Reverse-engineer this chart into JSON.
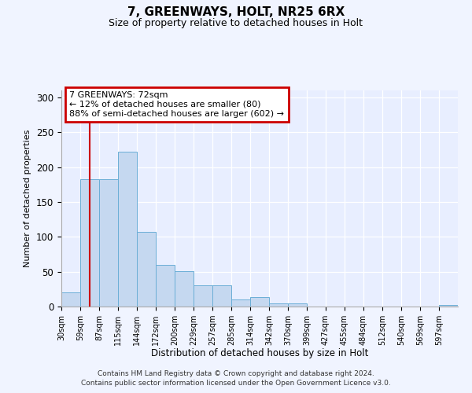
{
  "title": "7, GREENWAYS, HOLT, NR25 6RX",
  "subtitle": "Size of property relative to detached houses in Holt",
  "xlabel": "Distribution of detached houses by size in Holt",
  "ylabel": "Number of detached properties",
  "bar_values": [
    20,
    183,
    183,
    222,
    107,
    60,
    51,
    30,
    30,
    10,
    13,
    4,
    4,
    0,
    0,
    0,
    0,
    0,
    0,
    0,
    2
  ],
  "categories": [
    "30sqm",
    "59sqm",
    "87sqm",
    "115sqm",
    "144sqm",
    "172sqm",
    "200sqm",
    "229sqm",
    "257sqm",
    "285sqm",
    "314sqm",
    "342sqm",
    "370sqm",
    "399sqm",
    "427sqm",
    "455sqm",
    "484sqm",
    "512sqm",
    "540sqm",
    "569sqm",
    "597sqm"
  ],
  "bar_color": "#c5d8f0",
  "bar_edge_color": "#6baed6",
  "red_line_x": 1.5,
  "annotation_title": "7 GREENWAYS: 72sqm",
  "annotation_line1": "← 12% of detached houses are smaller (80)",
  "annotation_line2": "88% of semi-detached houses are larger (602) →",
  "annotation_box_color": "#ffffff",
  "annotation_box_edge": "#cc0000",
  "ylim": [
    0,
    310
  ],
  "yticks": [
    0,
    50,
    100,
    150,
    200,
    250,
    300
  ],
  "footer_line1": "Contains HM Land Registry data © Crown copyright and database right 2024.",
  "footer_line2": "Contains public sector information licensed under the Open Government Licence v3.0.",
  "background_color": "#f0f4ff",
  "plot_bg_color": "#e8eeff"
}
